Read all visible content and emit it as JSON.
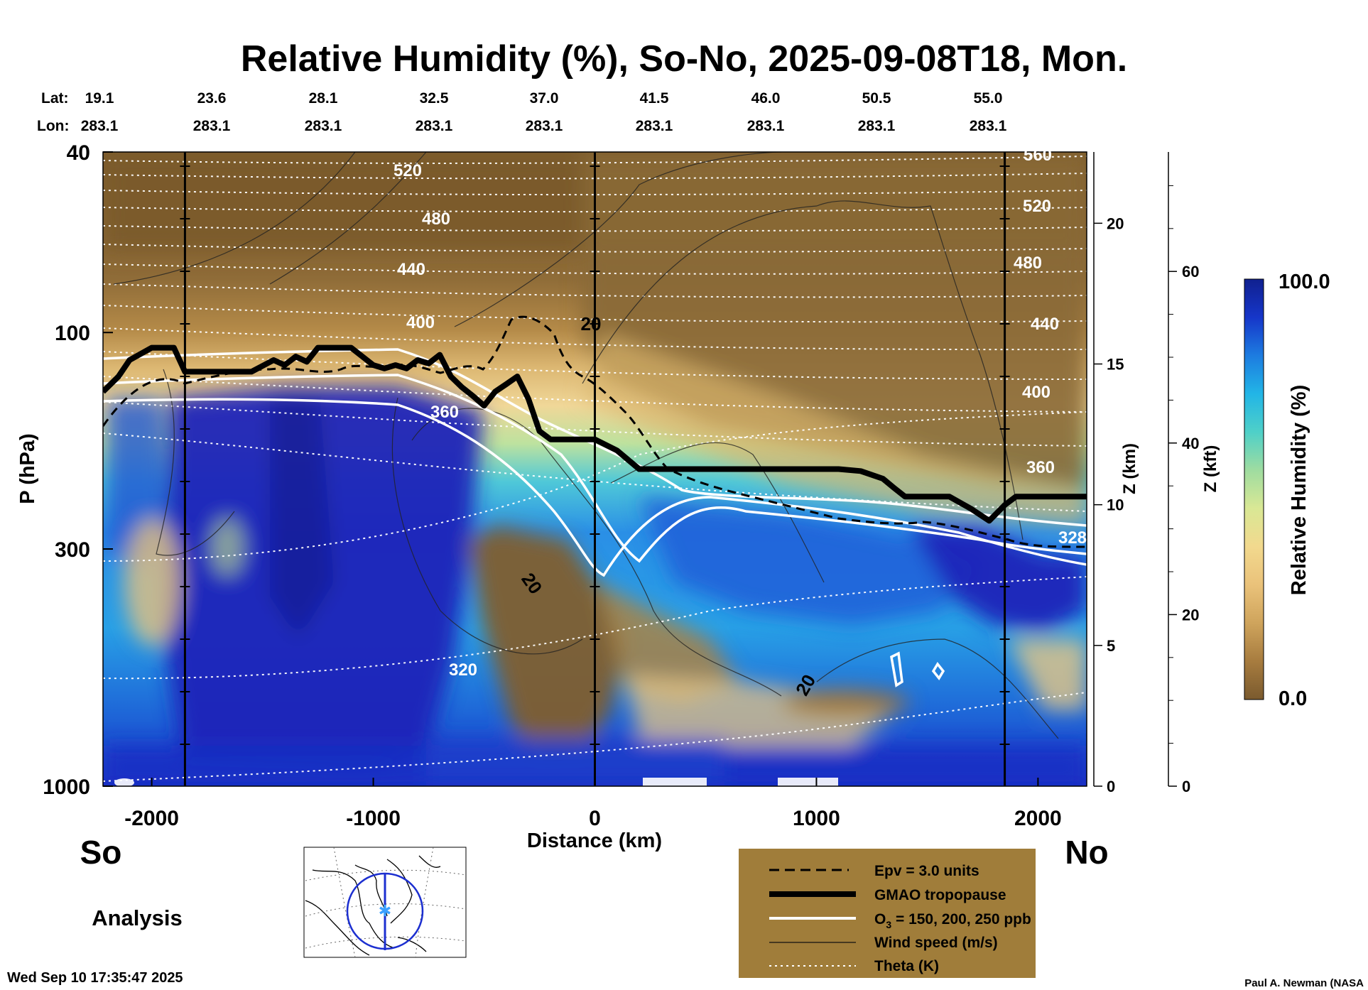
{
  "page": {
    "title": "Relative Humidity (%), So-No, 2025-09-08T18, Mon.",
    "south_label": "So",
    "north_label": "No",
    "product_label": "Analysis",
    "timestamp": "Wed Sep 10 17:35:47 2025",
    "credit": "Paul A. Newman (NASA"
  },
  "header": {
    "lat_label": "Lat:",
    "lon_label": "Lon:",
    "lats": [
      "19.1",
      "23.6",
      "28.1",
      "32.5",
      "37.0",
      "41.5",
      "46.0",
      "50.5",
      "55.0"
    ],
    "lons": [
      "283.1",
      "283.1",
      "283.1",
      "283.1",
      "283.1",
      "283.1",
      "283.1",
      "283.1",
      "283.1"
    ]
  },
  "legend": {
    "items": [
      {
        "name": "epv",
        "label": "Epv = 3.0 units",
        "color": "#000000"
      },
      {
        "name": "tropopause",
        "label": "GMAO tropopause",
        "color": "#000000"
      },
      {
        "name": "ozone",
        "label": "O3 = 150, 200, 250 ppb",
        "label_main": "O",
        "label_sub": "3",
        "label_rest": " = 150, 200, 250 ppb",
        "color": "#ffffff"
      },
      {
        "name": "wind",
        "label": "Wind speed (m/s)",
        "color": "#000000"
      },
      {
        "name": "theta",
        "label": "Theta (K)",
        "color": "#ffffff"
      }
    ],
    "background": "#a07d3a"
  },
  "colorbar": {
    "title": "Relative Humidity (%)",
    "max_label": "100.0",
    "min_label": "0.0",
    "stops": [
      "#7a5a2e",
      "#a77c3f",
      "#cfa45c",
      "#eac27a",
      "#f2d98e",
      "#d9e895",
      "#9fdca0",
      "#4fd0c8",
      "#22b5e6",
      "#1d7ce0",
      "#1636c9",
      "#10208f"
    ]
  },
  "colors": {
    "dry": "#8b6734",
    "moist": "#1a2fc4",
    "strat": "#8a6b3a",
    "tropopause": "#000000"
  },
  "chart_data": {
    "type": "heatmap",
    "title": "Relative Humidity (%), So-No, 2025-09-08T18, Mon.",
    "xlabel": "Distance (km)",
    "ylabel": "P (hPa)",
    "z_km_label": "Z (km)",
    "z_kft_label": "Z (kft)",
    "colorbar_label": "Relative Humidity (%)",
    "xlim": [
      -2220,
      2220
    ],
    "x_ticks": [
      -2000,
      -1000,
      0,
      1000,
      2000
    ],
    "x_tick_labels": [
      "-2000",
      "-1000",
      "0",
      "1000",
      "2000"
    ],
    "ylim_hpa": [
      1000,
      40
    ],
    "y_ticks_hpa": [
      40,
      100,
      300,
      1000
    ],
    "y_tick_labels": [
      "40",
      "100",
      "300",
      "1000"
    ],
    "z_km_ticks": [
      0,
      5,
      10,
      15,
      20
    ],
    "z_km_tick_labels": [
      "0",
      "5",
      "10",
      "15",
      "20"
    ],
    "z_kft_ticks": [
      0,
      20,
      40,
      60
    ],
    "z_kft_tick_labels": [
      "0",
      "20",
      "40",
      "60"
    ],
    "colorbar_range": [
      0,
      100
    ],
    "station_lines_km": [
      -1850,
      0,
      1850
    ],
    "tropopause": {
      "name": "GMAO tropopause",
      "x": [
        -2220,
        -2150,
        -2100,
        -2000,
        -1900,
        -1850,
        -1700,
        -1550,
        -1450,
        -1400,
        -1350,
        -1300,
        -1250,
        -1100,
        -1000,
        -950,
        -900,
        -850,
        -800,
        -750,
        -700,
        -650,
        -600,
        -550,
        -500,
        -450,
        -400,
        -350,
        -300,
        -250,
        -200,
        -100,
        0,
        100,
        200,
        400,
        600,
        800,
        1000,
        1100,
        1200,
        1300,
        1350,
        1400,
        1500,
        1600,
        1700,
        1780,
        1850,
        1900,
        2000,
        2100,
        2220
      ],
      "p": [
        135,
        125,
        115,
        108,
        108,
        122,
        122,
        122,
        115,
        118,
        113,
        116,
        108,
        108,
        118,
        120,
        118,
        120,
        115,
        117,
        112,
        125,
        132,
        138,
        145,
        135,
        130,
        125,
        140,
        165,
        172,
        172,
        172,
        182,
        200,
        200,
        200,
        200,
        200,
        200,
        202,
        210,
        220,
        230,
        230,
        230,
        245,
        260,
        240,
        230,
        230,
        230,
        230
      ]
    },
    "theta_labels_K": [
      "520",
      "480",
      "440",
      "400",
      "360",
      "320",
      "560",
      "520",
      "480",
      "440",
      "400",
      "360",
      "328"
    ],
    "wind_labels_ms": [
      "20",
      "20",
      "20"
    ],
    "series": [
      {
        "name": "Epv = 3.0 units",
        "style": "dashed black"
      },
      {
        "name": "GMAO tropopause",
        "style": "thick black"
      },
      {
        "name": "O3 = 150, 200, 250 ppb",
        "style": "white solid"
      },
      {
        "name": "Wind speed (m/s)",
        "style": "thin black"
      },
      {
        "name": "Theta (K)",
        "style": "white dotted"
      }
    ]
  }
}
